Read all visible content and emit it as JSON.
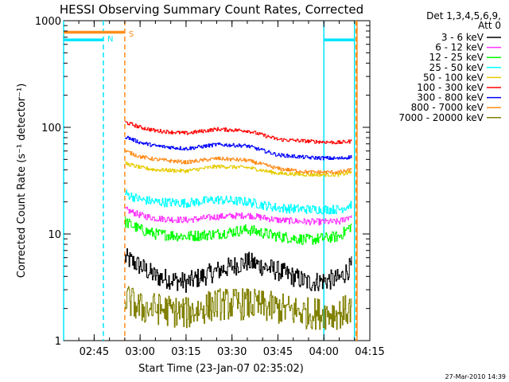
{
  "chart_data": {
    "type": "line",
    "title": "HESSI Observing Summary Count Rates, Corrected",
    "xlabel": "Start Time (23-Jan-07 02:35:02)",
    "ylabel": "Corrected Count Rate (s⁻¹ detector⁻¹)",
    "yscale": "log",
    "ylim": [
      1,
      1000
    ],
    "xlim": [
      "02:35:02",
      "04:15:00"
    ],
    "x_ticks": [
      "02:45",
      "03:00",
      "03:15",
      "03:30",
      "03:45",
      "04:00",
      "04:15"
    ],
    "y_ticks": [
      "1",
      "10",
      "100",
      "1000"
    ],
    "grid": false,
    "legend_position": "right",
    "legend_header": [
      "Det 1,3,4,5,6,9,",
      "Att 0"
    ],
    "footer": "27-Mar-2010 14:39",
    "markers": [
      {
        "label": "S",
        "time": "02:55:00",
        "color": "#ff8c1a",
        "style": "dashed"
      },
      {
        "label": "N",
        "time": "02:48:00",
        "color": "#00e5ff",
        "style": "dashed"
      }
    ],
    "vertical_lines": [
      {
        "time": "02:35:02",
        "color": "#00e5ff",
        "style": "solid"
      },
      {
        "time": "04:00:00",
        "color": "#00e5ff",
        "style": "solid"
      },
      {
        "time": "04:10:00",
        "color": "#00e5ff",
        "style": "solid"
      },
      {
        "time": "04:10:30",
        "color": "#ff8c1a",
        "style": "dashed"
      },
      {
        "time": "04:10:50",
        "color": "#ff8c1a",
        "style": "solid"
      }
    ],
    "top_bars": [
      {
        "label": "S",
        "from": "02:35:02",
        "to": "02:55:00",
        "value": 780,
        "color": "#ff8c1a"
      },
      {
        "label": "N",
        "from": "02:35:02",
        "to": "02:48:00",
        "value": 660,
        "color": "#00e5ff"
      },
      {
        "from": "04:00:00",
        "to": "04:10:00",
        "value": 660,
        "color": "#00e5ff"
      }
    ],
    "time_range": [
      "02:55:30",
      "04:09:30"
    ],
    "series": [
      {
        "name": "3 - 6 keV",
        "color": "#000000",
        "x": [
          "02:55",
          "03:00",
          "03:05",
          "03:15",
          "03:25",
          "03:35",
          "03:45",
          "03:55",
          "04:05",
          "04:09"
        ],
        "y": [
          6,
          5,
          4,
          3.5,
          4.5,
          5.5,
          4.5,
          3.5,
          3.8,
          5
        ]
      },
      {
        "name": "6 - 12 keV",
        "color": "#ff33ff",
        "x": [
          "02:55",
          "03:00",
          "03:05",
          "03:15",
          "03:25",
          "03:35",
          "03:45",
          "03:55",
          "04:05",
          "04:09"
        ],
        "y": [
          17,
          15,
          14,
          13.5,
          14.5,
          15,
          13.5,
          13,
          13,
          15
        ]
      },
      {
        "name": "12 - 25 keV",
        "color": "#00ff00",
        "x": [
          "02:55",
          "03:00",
          "03:05",
          "03:15",
          "03:25",
          "03:35",
          "03:45",
          "03:55",
          "04:05",
          "04:09"
        ],
        "y": [
          13,
          11,
          10,
          9.5,
          10,
          11,
          9.5,
          8.8,
          9.5,
          12
        ]
      },
      {
        "name": "25 - 50 keV",
        "color": "#00ffff",
        "x": [
          "02:55",
          "03:00",
          "03:05",
          "03:15",
          "03:25",
          "03:35",
          "03:45",
          "03:55",
          "04:05",
          "04:09"
        ],
        "y": [
          24,
          21,
          20,
          19.5,
          21,
          20,
          17.5,
          17,
          17,
          19
        ]
      },
      {
        "name": "50 - 100 keV",
        "color": "#e6cc00",
        "x": [
          "02:55",
          "03:00",
          "03:05",
          "03:15",
          "03:25",
          "03:35",
          "03:45",
          "03:55",
          "04:05",
          "04:09"
        ],
        "y": [
          46,
          42,
          40,
          39,
          43,
          42,
          37,
          36,
          36,
          38
        ]
      },
      {
        "name": "100 - 300 keV",
        "color": "#ff0000",
        "x": [
          "02:55",
          "03:00",
          "03:05",
          "03:15",
          "03:25",
          "03:35",
          "03:45",
          "03:55",
          "04:05",
          "04:09"
        ],
        "y": [
          112,
          100,
          93,
          88,
          96,
          93,
          77,
          74,
          72,
          74
        ]
      },
      {
        "name": "300 - 800 keV",
        "color": "#0000ff",
        "x": [
          "02:55",
          "03:00",
          "03:05",
          "03:15",
          "03:25",
          "03:35",
          "03:45",
          "03:55",
          "04:05",
          "04:09"
        ],
        "y": [
          82,
          72,
          67,
          63,
          69,
          67,
          55,
          52,
          51,
          53
        ]
      },
      {
        "name": "800 - 7000 keV",
        "color": "#ff8c1a",
        "x": [
          "02:55",
          "03:00",
          "03:05",
          "03:15",
          "03:25",
          "03:35",
          "03:45",
          "03:55",
          "04:05",
          "04:09"
        ],
        "y": [
          60,
          53,
          50,
          47,
          51,
          49,
          41,
          38,
          38,
          40
        ]
      },
      {
        "name": "7000 - 20000 keV",
        "color": "#808000",
        "x": [
          "02:55",
          "03:00",
          "03:05",
          "03:15",
          "03:25",
          "03:35",
          "03:45",
          "03:55",
          "04:05",
          "04:09"
        ],
        "y": [
          2.5,
          2,
          2,
          1.8,
          2.2,
          2.2,
          2,
          1.8,
          1.8,
          2
        ]
      }
    ]
  }
}
